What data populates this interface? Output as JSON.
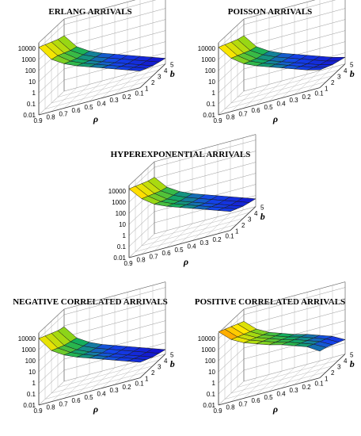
{
  "chart_data": [
    {
      "type": "surface",
      "title": "ERLANG ARRIVALS",
      "xlabel": "ρ",
      "ylabel": "b",
      "zscale": "log",
      "x_ticks": [
        "0.9",
        "0.8",
        "0.7",
        "0.6",
        "0.5",
        "0.4",
        "0.3",
        "0.2",
        "0.1"
      ],
      "y_ticks": [
        "1",
        "2",
        "3",
        "4",
        "5"
      ],
      "z_ticks": [
        "0.01",
        "0.1",
        "1",
        "10",
        "100",
        "1000",
        "10000"
      ],
      "z_log_values": [
        [
          4.1,
          2.7,
          2.0,
          1.5,
          1.1,
          0.7,
          0.3,
          -0.1,
          -0.5
        ],
        [
          3.8,
          2.5,
          1.7,
          1.2,
          0.8,
          0.4,
          0.0,
          -0.4,
          -0.8
        ],
        [
          3.5,
          2.2,
          1.4,
          0.9,
          0.5,
          0.1,
          -0.3,
          -0.7,
          -1.1
        ],
        [
          3.2,
          1.9,
          1.2,
          0.7,
          0.3,
          -0.1,
          -0.5,
          -0.9,
          -1.3
        ],
        [
          3.0,
          1.7,
          1.0,
          0.5,
          0.1,
          -0.3,
          -0.7,
          -1.1,
          -1.5
        ]
      ]
    },
    {
      "type": "surface",
      "title": "POISSON ARRIVALS",
      "xlabel": "ρ",
      "ylabel": "b",
      "zscale": "log",
      "x_ticks": [
        "0.9",
        "0.8",
        "0.7",
        "0.6",
        "0.5",
        "0.4",
        "0.3",
        "0.2",
        "0.1"
      ],
      "y_ticks": [
        "1",
        "2",
        "3",
        "4",
        "5"
      ],
      "z_ticks": [
        "0.01",
        "0.1",
        "1",
        "10",
        "100",
        "1000",
        "10000"
      ],
      "z_log_values": [
        [
          4.1,
          2.8,
          2.0,
          1.5,
          1.1,
          0.7,
          0.3,
          -0.1,
          -0.4
        ],
        [
          3.8,
          2.5,
          1.7,
          1.2,
          0.8,
          0.4,
          0.0,
          -0.4,
          -0.7
        ],
        [
          3.5,
          2.2,
          1.4,
          0.9,
          0.5,
          0.1,
          -0.3,
          -0.7,
          -1.0
        ],
        [
          3.2,
          1.9,
          1.2,
          0.7,
          0.3,
          -0.1,
          -0.5,
          -0.9,
          -1.2
        ],
        [
          3.0,
          1.7,
          1.0,
          0.5,
          0.1,
          -0.3,
          -0.7,
          -1.1,
          -1.4
        ]
      ]
    },
    {
      "type": "surface",
      "title": "HYPEREXPONENTIAL ARRIVALS",
      "xlabel": "ρ",
      "ylabel": "b",
      "zscale": "log",
      "x_ticks": [
        "0.9",
        "0.8",
        "0.7",
        "0.6",
        "0.5",
        "0.4",
        "0.3",
        "0.2",
        "0.1"
      ],
      "y_ticks": [
        "1",
        "2",
        "3",
        "4",
        "5"
      ],
      "z_ticks": [
        "0.01",
        "0.1",
        "1",
        "10",
        "100",
        "1000",
        "10000"
      ],
      "z_log_values": [
        [
          4.2,
          3.0,
          2.2,
          1.7,
          1.3,
          0.9,
          0.5,
          0.1,
          -0.3
        ],
        [
          3.9,
          2.7,
          1.9,
          1.4,
          1.0,
          0.6,
          0.2,
          -0.2,
          -0.6
        ],
        [
          3.6,
          2.4,
          1.6,
          1.1,
          0.7,
          0.3,
          -0.1,
          -0.5,
          -0.9
        ],
        [
          3.3,
          2.1,
          1.4,
          0.9,
          0.5,
          0.1,
          -0.3,
          -0.7,
          -1.1
        ],
        [
          3.1,
          1.9,
          1.2,
          0.7,
          0.3,
          -0.1,
          -0.5,
          -0.9,
          -1.3
        ]
      ]
    },
    {
      "type": "surface",
      "title": "NEGATIVE CORRELATED ARRIVALS",
      "xlabel": "ρ",
      "ylabel": "b",
      "zscale": "log",
      "x_ticks": [
        "0.9",
        "0.8",
        "0.7",
        "0.6",
        "0.5",
        "0.4",
        "0.3",
        "0.2",
        "0.1"
      ],
      "y_ticks": [
        "1",
        "2",
        "3",
        "4",
        "5"
      ],
      "z_ticks": [
        "0.01",
        "0.1",
        "1",
        "10",
        "100",
        "1000",
        "10000"
      ],
      "z_log_values": [
        [
          4.0,
          2.6,
          1.9,
          1.4,
          1.0,
          0.6,
          0.2,
          -0.2,
          -0.6
        ],
        [
          3.7,
          2.3,
          1.6,
          1.1,
          0.7,
          0.3,
          -0.1,
          -0.5,
          -0.9
        ],
        [
          3.4,
          2.0,
          1.3,
          0.8,
          0.4,
          0.0,
          -0.4,
          -0.8,
          -1.2
        ],
        [
          3.1,
          1.8,
          1.1,
          0.6,
          0.2,
          -0.2,
          -0.6,
          -1.0,
          -1.4
        ],
        [
          2.9,
          1.6,
          0.9,
          0.4,
          0.0,
          -0.4,
          -0.8,
          -1.2,
          -1.6
        ]
      ]
    },
    {
      "type": "surface",
      "title": "POSITIVE CORRELATED ARRIVALS",
      "xlabel": "ρ",
      "ylabel": "b",
      "zscale": "log",
      "x_ticks": [
        "0.9",
        "0.8",
        "0.7",
        "0.6",
        "0.5",
        "0.4",
        "0.3",
        "0.2",
        "0.1"
      ],
      "y_ticks": [
        "1",
        "2",
        "3",
        "4",
        "5"
      ],
      "z_ticks": [
        "0.01",
        "0.1",
        "1",
        "10",
        "100",
        "1000",
        "10000"
      ],
      "z_log_values": [
        [
          4.6,
          3.6,
          3.0,
          2.6,
          2.2,
          1.9,
          1.5,
          1.1,
          0.4
        ],
        [
          4.3,
          3.3,
          2.7,
          2.3,
          1.9,
          1.6,
          1.2,
          0.8,
          0.2
        ],
        [
          4.0,
          3.0,
          2.4,
          2.0,
          1.6,
          1.3,
          0.9,
          0.5,
          -0.1
        ],
        [
          3.7,
          2.7,
          2.1,
          1.7,
          1.3,
          1.0,
          0.6,
          0.2,
          -0.4
        ],
        [
          3.4,
          2.4,
          1.8,
          1.4,
          1.0,
          0.7,
          0.3,
          -0.1,
          -0.7
        ]
      ]
    }
  ]
}
